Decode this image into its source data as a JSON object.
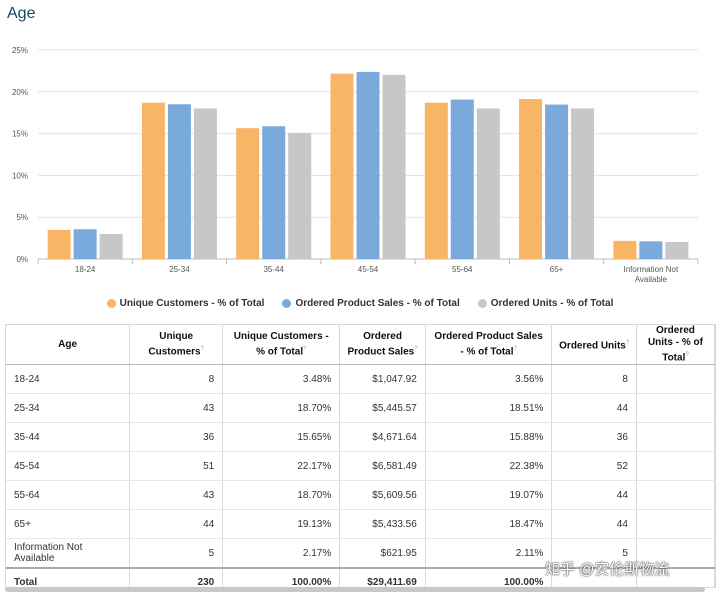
{
  "page": {
    "title": "Age"
  },
  "chart_data": {
    "type": "bar",
    "title": "Age",
    "categories": [
      "18-24",
      "25-34",
      "35-44",
      "45-54",
      "55-64",
      "65+",
      "Information Not Available"
    ],
    "series": [
      {
        "name": "Unique Customers - % of Total",
        "color": "#f8b566",
        "values": [
          3.48,
          18.7,
          15.65,
          22.17,
          18.7,
          19.13,
          2.17
        ]
      },
      {
        "name": "Ordered Product Sales - % of Total",
        "color": "#7aa9dc",
        "values": [
          3.56,
          18.51,
          15.88,
          22.38,
          19.07,
          18.47,
          2.11
        ]
      },
      {
        "name": "Ordered Units - % of Total",
        "color": "#c7c7c7",
        "values": [
          2.99,
          18.01,
          15.08,
          22.03,
          18.01,
          18.01,
          2.04
        ]
      }
    ],
    "ylim": [
      0,
      25
    ],
    "yticks": [
      "0%",
      "5%",
      "10%",
      "15%",
      "20%",
      "25%"
    ],
    "ytick_values": [
      0,
      5,
      10,
      15,
      20,
      25
    ],
    "xlabel": "",
    "ylabel": "",
    "legend": "bottom-center",
    "grid": true
  },
  "table": {
    "headers": [
      {
        "label": "Age",
        "sup": ""
      },
      {
        "label": "Unique Customers",
        "sup": "?"
      },
      {
        "label": "Unique Customers - % of Total",
        "sup": "?"
      },
      {
        "label": "Ordered Product Sales",
        "sup": "?"
      },
      {
        "label": "Ordered Product Sales - % of Total",
        "sup": "?"
      },
      {
        "label": "Ordered Units",
        "sup": "?"
      },
      {
        "label": "Ordered Units - % of Total",
        "sup": "?"
      }
    ],
    "rows": [
      [
        "18-24",
        "8",
        "3.48%",
        "$1,047.92",
        "3.56%",
        "8",
        ""
      ],
      [
        "25-34",
        "43",
        "18.70%",
        "$5,445.57",
        "18.51%",
        "44",
        ""
      ],
      [
        "35-44",
        "36",
        "15.65%",
        "$4,671.64",
        "15.88%",
        "36",
        ""
      ],
      [
        "45-54",
        "51",
        "22.17%",
        "$6,581.49",
        "22.38%",
        "52",
        ""
      ],
      [
        "55-64",
        "43",
        "18.70%",
        "$5,609.56",
        "19.07%",
        "44",
        ""
      ],
      [
        "65+",
        "44",
        "19.13%",
        "$5,433.56",
        "18.47%",
        "44",
        ""
      ],
      [
        "Information Not Available",
        "5",
        "2.17%",
        "$621.95",
        "2.11%",
        "5",
        ""
      ]
    ],
    "total": [
      "Total",
      "230",
      "100.00%",
      "$29,411.69",
      "100.00%",
      "",
      ""
    ]
  },
  "watermark": "知乎 @安伦斯物流"
}
